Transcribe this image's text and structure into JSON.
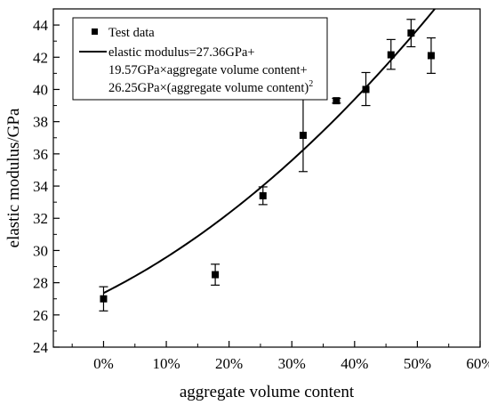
{
  "chart_data": {
    "type": "scatter",
    "xlabel": "aggregate volume content",
    "ylabel": "elastic modulus/GPa",
    "xlim": [
      -0.08,
      0.6
    ],
    "ylim": [
      24,
      45
    ],
    "x_ticks": [
      0,
      0.1,
      0.2,
      0.3,
      0.4,
      0.5,
      0.6
    ],
    "x_tick_labels": [
      "0%",
      "10%",
      "20%",
      "30%",
      "40%",
      "50%",
      "60%"
    ],
    "y_ticks": [
      24,
      26,
      28,
      30,
      32,
      34,
      36,
      38,
      40,
      42,
      44
    ],
    "y_tick_labels": [
      "24",
      "26",
      "28",
      "30",
      "32",
      "34",
      "36",
      "38",
      "40",
      "42",
      "44"
    ],
    "grid": false,
    "legend_position": "top-left",
    "series": [
      {
        "name": "Test data",
        "kind": "points-with-error-bars",
        "color": "#000000",
        "points": [
          {
            "x": 0.0,
            "y": 27.0,
            "err_low": 26.25,
            "err_high": 27.75
          },
          {
            "x": 0.178,
            "y": 28.5,
            "err_low": 27.85,
            "err_high": 29.15
          },
          {
            "x": 0.254,
            "y": 33.4,
            "err_low": 32.85,
            "err_high": 33.95
          },
          {
            "x": 0.318,
            "y": 37.15,
            "err_low": 34.9,
            "err_high": 39.4
          },
          {
            "x": 0.371,
            "y": 39.3,
            "err_low": 39.15,
            "err_high": 39.45
          },
          {
            "x": 0.418,
            "y": 40.0,
            "err_low": 39.0,
            "err_high": 41.05
          },
          {
            "x": 0.458,
            "y": 42.15,
            "err_low": 41.25,
            "err_high": 43.1
          },
          {
            "x": 0.49,
            "y": 43.5,
            "err_low": 42.65,
            "err_high": 44.35
          },
          {
            "x": 0.522,
            "y": 42.1,
            "err_low": 41.0,
            "err_high": 43.2
          }
        ]
      },
      {
        "name_lines": [
          "elastic modulus=27.36GPa+",
          "19.57GPa×aggregate volume content+",
          "26.25GPa×(aggregate volume content)"
        ],
        "name_superscript": "2",
        "kind": "fitted-curve",
        "color": "#000000",
        "coefficients": {
          "c0": 27.36,
          "c1": 19.57,
          "c2": 26.25
        },
        "x_range": [
          0,
          0.6
        ]
      }
    ]
  }
}
